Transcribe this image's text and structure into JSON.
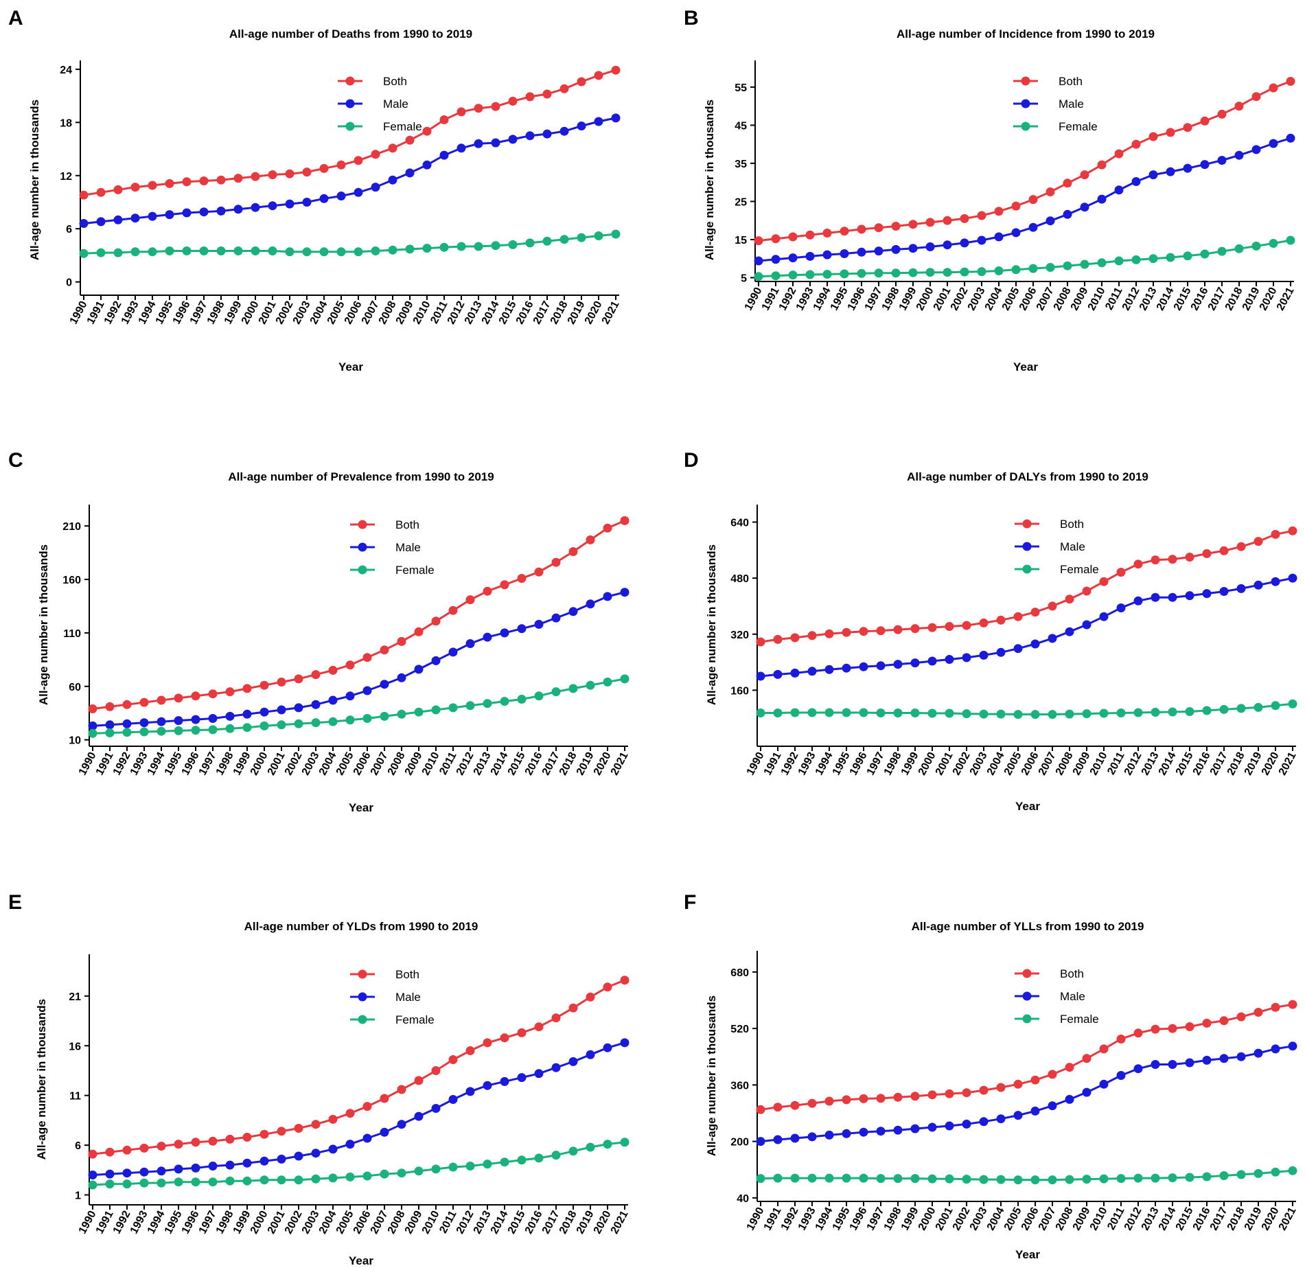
{
  "colors": {
    "both": "#e8393f",
    "male": "#1a1adb",
    "female": "#19b27b",
    "axis": "#000000"
  },
  "chart_data": [
    {
      "panel": "A",
      "type": "line",
      "title": "All-age number of Deaths from 1990 to 2019",
      "xlabel": "Year",
      "ylabel": "All-age number in thousands",
      "ylim": [
        -1.5,
        25
      ],
      "yticks": [
        0,
        6,
        12,
        18,
        24
      ],
      "legend": [
        "Both",
        "Male",
        "Female"
      ],
      "x": [
        1990,
        1991,
        1992,
        1993,
        1994,
        1995,
        1996,
        1997,
        1998,
        1999,
        2000,
        2001,
        2002,
        2003,
        2004,
        2005,
        2006,
        2007,
        2008,
        2009,
        2010,
        2011,
        2012,
        2013,
        2014,
        2015,
        2016,
        2017,
        2018,
        2019,
        2020,
        2021
      ],
      "series": [
        {
          "name": "Both",
          "values": [
            9.8,
            10.1,
            10.4,
            10.7,
            10.9,
            11.1,
            11.3,
            11.4,
            11.5,
            11.7,
            11.9,
            12.1,
            12.2,
            12.4,
            12.8,
            13.2,
            13.7,
            14.4,
            15.1,
            16.0,
            17.0,
            18.3,
            19.2,
            19.6,
            19.8,
            20.4,
            20.9,
            21.2,
            21.8,
            22.6,
            23.3,
            23.9
          ]
        },
        {
          "name": "Male",
          "values": [
            6.6,
            6.8,
            7.0,
            7.2,
            7.4,
            7.6,
            7.8,
            7.9,
            8.0,
            8.2,
            8.4,
            8.6,
            8.8,
            9.0,
            9.4,
            9.7,
            10.1,
            10.7,
            11.5,
            12.3,
            13.2,
            14.3,
            15.1,
            15.6,
            15.7,
            16.1,
            16.5,
            16.7,
            17.0,
            17.6,
            18.1,
            18.5
          ]
        },
        {
          "name": "Female",
          "values": [
            3.2,
            3.3,
            3.3,
            3.4,
            3.4,
            3.5,
            3.5,
            3.5,
            3.5,
            3.5,
            3.5,
            3.5,
            3.4,
            3.4,
            3.4,
            3.4,
            3.4,
            3.5,
            3.6,
            3.7,
            3.8,
            3.9,
            4.0,
            4.0,
            4.1,
            4.2,
            4.4,
            4.6,
            4.8,
            5.0,
            5.2,
            5.4
          ]
        }
      ]
    },
    {
      "panel": "B",
      "type": "line",
      "title": "All-age number of Incidence from 1990 to 2019",
      "xlabel": "Year",
      "ylabel": "All-age number in thousands",
      "ylim": [
        4,
        62
      ],
      "yticks": [
        5,
        15,
        25,
        35,
        45,
        55
      ],
      "legend": [
        "Both",
        "Male",
        "Female"
      ],
      "x": [
        1990,
        1991,
        1992,
        1993,
        1994,
        1995,
        1996,
        1997,
        1998,
        1999,
        2000,
        2001,
        2002,
        2003,
        2004,
        2005,
        2006,
        2007,
        2008,
        2009,
        2010,
        2011,
        2012,
        2013,
        2014,
        2015,
        2016,
        2017,
        2018,
        2019,
        2020,
        2021
      ],
      "series": [
        {
          "name": "Both",
          "values": [
            14.7,
            15.2,
            15.7,
            16.2,
            16.7,
            17.2,
            17.7,
            18.1,
            18.5,
            19.0,
            19.5,
            20.0,
            20.5,
            21.3,
            22.4,
            23.8,
            25.5,
            27.5,
            29.8,
            32.0,
            34.6,
            37.5,
            40.0,
            42.0,
            43.1,
            44.4,
            46.1,
            47.9,
            50.0,
            52.5,
            54.8,
            56.5
          ]
        },
        {
          "name": "Male",
          "values": [
            9.4,
            9.8,
            10.2,
            10.6,
            11.0,
            11.3,
            11.7,
            12.0,
            12.4,
            12.7,
            13.1,
            13.6,
            14.1,
            14.8,
            15.7,
            16.8,
            18.2,
            19.9,
            21.6,
            23.5,
            25.6,
            28.0,
            30.2,
            32.0,
            32.8,
            33.7,
            34.7,
            35.8,
            37.1,
            38.6,
            40.2,
            41.6
          ]
        },
        {
          "name": "Female",
          "values": [
            5.3,
            5.5,
            5.7,
            5.8,
            5.9,
            6.0,
            6.1,
            6.2,
            6.2,
            6.3,
            6.4,
            6.4,
            6.5,
            6.6,
            6.8,
            7.1,
            7.4,
            7.7,
            8.1,
            8.5,
            8.9,
            9.4,
            9.7,
            10.0,
            10.3,
            10.7,
            11.2,
            11.9,
            12.6,
            13.3,
            14.0,
            14.8
          ]
        }
      ]
    },
    {
      "panel": "C",
      "type": "line",
      "title": "All-age number of Prevalence from 1990 to 2019",
      "xlabel": "Year",
      "ylabel": "All-age number in thousands",
      "ylim": [
        4,
        230
      ],
      "yticks": [
        10,
        60,
        110,
        160,
        210
      ],
      "legend": [
        "Both",
        "Male",
        "Female"
      ],
      "x": [
        1990,
        1991,
        1992,
        1993,
        1994,
        1995,
        1996,
        1997,
        1998,
        1999,
        2000,
        2001,
        2002,
        2003,
        2004,
        2005,
        2006,
        2007,
        2008,
        2009,
        2010,
        2011,
        2012,
        2013,
        2014,
        2015,
        2016,
        2017,
        2018,
        2019,
        2020,
        2021
      ],
      "series": [
        {
          "name": "Both",
          "values": [
            39,
            41,
            43,
            45,
            47,
            49,
            51,
            53,
            55,
            58,
            61,
            64,
            67,
            71,
            75,
            80,
            87,
            94,
            102,
            111,
            121,
            131,
            141,
            149,
            155,
            161,
            167,
            176,
            186,
            197,
            208,
            215
          ]
        },
        {
          "name": "Male",
          "values": [
            23,
            24,
            25,
            26,
            27,
            28,
            29,
            30,
            32,
            34,
            36,
            38,
            40,
            43,
            47,
            51,
            56,
            62,
            68,
            76,
            84,
            92,
            100,
            106,
            110,
            114,
            118,
            124,
            130,
            137,
            144,
            148
          ]
        },
        {
          "name": "Female",
          "values": [
            16,
            16.5,
            17,
            17.5,
            18,
            18.5,
            19,
            19.5,
            20.5,
            21.5,
            23,
            24,
            25,
            26,
            27,
            28.5,
            30,
            32,
            34,
            36,
            38,
            40,
            42,
            44,
            46,
            48,
            51,
            55,
            58,
            61,
            64,
            67
          ]
        }
      ]
    },
    {
      "panel": "D",
      "type": "line",
      "title": "All-age number of DALYs from 1990 to 2019",
      "xlabel": "Year",
      "ylabel": "All-age number in thousands",
      "ylim": [
        0,
        690
      ],
      "yticks": [
        160,
        320,
        480,
        640
      ],
      "legend": [
        "Both",
        "Male",
        "Female"
      ],
      "x": [
        1990,
        1991,
        1992,
        1993,
        1994,
        1995,
        1996,
        1997,
        1998,
        1999,
        2000,
        2001,
        2002,
        2003,
        2004,
        2005,
        2006,
        2007,
        2008,
        2009,
        2010,
        2011,
        2012,
        2013,
        2014,
        2015,
        2016,
        2017,
        2018,
        2019,
        2020,
        2021
      ],
      "series": [
        {
          "name": "Both",
          "values": [
            298,
            305,
            310,
            316,
            321,
            325,
            328,
            330,
            333,
            336,
            339,
            342,
            345,
            352,
            360,
            370,
            383,
            400,
            420,
            443,
            470,
            497,
            520,
            532,
            534,
            540,
            550,
            558,
            570,
            585,
            605,
            615
          ]
        },
        {
          "name": "Male",
          "values": [
            200,
            205,
            209,
            214,
            219,
            223,
            227,
            230,
            234,
            238,
            243,
            248,
            253,
            260,
            268,
            279,
            292,
            308,
            327,
            347,
            370,
            395,
            415,
            425,
            425,
            430,
            436,
            442,
            450,
            460,
            470,
            480
          ]
        },
        {
          "name": "Female",
          "values": [
            95,
            95,
            96,
            96,
            96,
            96,
            96,
            95,
            95,
            95,
            94,
            94,
            93,
            92,
            92,
            91,
            91,
            91,
            92,
            93,
            94,
            95,
            96,
            97,
            98,
            99,
            102,
            105,
            108,
            111,
            116,
            121
          ]
        }
      ]
    },
    {
      "panel": "E",
      "type": "line",
      "title": "All-age number of YLDs from 1990 to 2019",
      "xlabel": "Year",
      "ylabel": "All-age number in thousands",
      "ylim": [
        0,
        25.2
      ],
      "yticks": [
        1,
        6,
        11,
        16,
        21
      ],
      "legend": [
        "Both",
        "Male",
        "Female"
      ],
      "x": [
        1990,
        1991,
        1992,
        1993,
        1994,
        1995,
        1996,
        1997,
        1998,
        1999,
        2000,
        2001,
        2002,
        2003,
        2004,
        2005,
        2006,
        2007,
        2008,
        2009,
        2010,
        2011,
        2012,
        2013,
        2014,
        2015,
        2016,
        2017,
        2018,
        2019,
        2020,
        2021
      ],
      "series": [
        {
          "name": "Both",
          "values": [
            5.1,
            5.3,
            5.5,
            5.7,
            5.9,
            6.1,
            6.3,
            6.4,
            6.6,
            6.8,
            7.1,
            7.4,
            7.7,
            8.1,
            8.6,
            9.2,
            9.9,
            10.7,
            11.6,
            12.5,
            13.5,
            14.6,
            15.5,
            16.3,
            16.8,
            17.3,
            17.9,
            18.8,
            19.8,
            20.9,
            21.9,
            22.6
          ]
        },
        {
          "name": "Male",
          "values": [
            3.0,
            3.1,
            3.2,
            3.3,
            3.4,
            3.6,
            3.7,
            3.9,
            4.0,
            4.2,
            4.4,
            4.6,
            4.9,
            5.2,
            5.6,
            6.1,
            6.7,
            7.3,
            8.1,
            8.9,
            9.7,
            10.6,
            11.4,
            12.0,
            12.4,
            12.8,
            13.2,
            13.8,
            14.4,
            15.1,
            15.8,
            16.3
          ]
        },
        {
          "name": "Female",
          "values": [
            2.0,
            2.1,
            2.1,
            2.2,
            2.2,
            2.3,
            2.3,
            2.3,
            2.4,
            2.4,
            2.5,
            2.5,
            2.5,
            2.6,
            2.7,
            2.8,
            2.9,
            3.1,
            3.2,
            3.4,
            3.6,
            3.8,
            3.9,
            4.1,
            4.3,
            4.5,
            4.7,
            5.0,
            5.4,
            5.8,
            6.1,
            6.3
          ]
        }
      ]
    },
    {
      "panel": "F",
      "type": "line",
      "title": "All-age number of YLLs from 1990 to 2019",
      "xlabel": "Year",
      "ylabel": "All-age number in thousands",
      "ylim": [
        30,
        740
      ],
      "yticks": [
        40,
        200,
        360,
        520,
        680
      ],
      "legend": [
        "Both",
        "Male",
        "Female"
      ],
      "x": [
        1990,
        1991,
        1992,
        1993,
        1994,
        1995,
        1996,
        1997,
        1998,
        1999,
        2000,
        2001,
        2002,
        2003,
        2004,
        2005,
        2006,
        2007,
        2008,
        2009,
        2010,
        2011,
        2012,
        2013,
        2014,
        2015,
        2016,
        2017,
        2018,
        2019,
        2020,
        2021
      ],
      "series": [
        {
          "name": "Both",
          "values": [
            290,
            297,
            302,
            308,
            314,
            318,
            321,
            322,
            325,
            328,
            332,
            335,
            338,
            345,
            353,
            362,
            374,
            390,
            410,
            435,
            462,
            490,
            507,
            518,
            520,
            525,
            535,
            542,
            553,
            566,
            580,
            588
          ]
        },
        {
          "name": "Male",
          "values": [
            200,
            205,
            209,
            213,
            218,
            222,
            226,
            229,
            232,
            236,
            240,
            244,
            249,
            256,
            264,
            274,
            286,
            301,
            319,
            339,
            362,
            387,
            406,
            418,
            418,
            423,
            430,
            435,
            440,
            450,
            462,
            470
          ]
        },
        {
          "name": "Female",
          "values": [
            95,
            96,
            96,
            96,
            96,
            96,
            96,
            95,
            95,
            95,
            94,
            94,
            93,
            92,
            92,
            91,
            91,
            91,
            92,
            93,
            94,
            95,
            96,
            96,
            97,
            98,
            100,
            103,
            106,
            109,
            113,
            117
          ]
        }
      ]
    }
  ]
}
